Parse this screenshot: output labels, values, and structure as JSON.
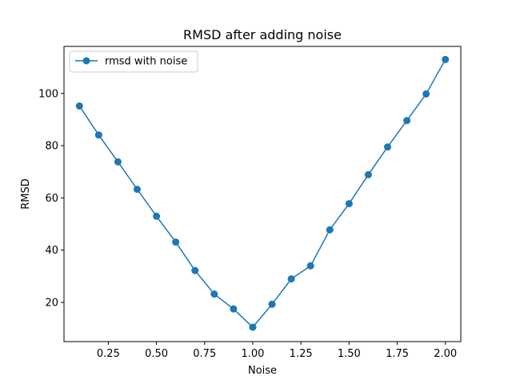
{
  "chart_data": {
    "type": "line",
    "title": "RMSD after adding noise",
    "xlabel": "Noise",
    "ylabel": "RMSD",
    "xlim": [
      0.02,
      2.08
    ],
    "ylim": [
      5,
      118
    ],
    "xticks": [
      "0.25",
      "0.50",
      "0.75",
      "1.00",
      "1.25",
      "1.50",
      "1.75",
      "2.00"
    ],
    "yticks": [
      "20",
      "40",
      "60",
      "80",
      "100"
    ],
    "grid": false,
    "legend_position": "upper-left",
    "series": [
      {
        "name": "rmsd with noise",
        "color": "#1f77b4",
        "marker": "circle",
        "x": [
          0.1,
          0.2,
          0.3,
          0.4,
          0.5,
          0.6,
          0.7,
          0.8,
          0.9,
          1.0,
          1.1,
          1.2,
          1.3,
          1.4,
          1.5,
          1.6,
          1.7,
          1.8,
          1.9,
          2.0
        ],
        "y": [
          95.2,
          84.1,
          73.8,
          63.3,
          53.0,
          43.1,
          32.2,
          23.2,
          17.5,
          10.5,
          19.3,
          29.0,
          34.0,
          47.8,
          57.8,
          68.9,
          79.5,
          89.6,
          99.8,
          113.0
        ]
      }
    ]
  }
}
